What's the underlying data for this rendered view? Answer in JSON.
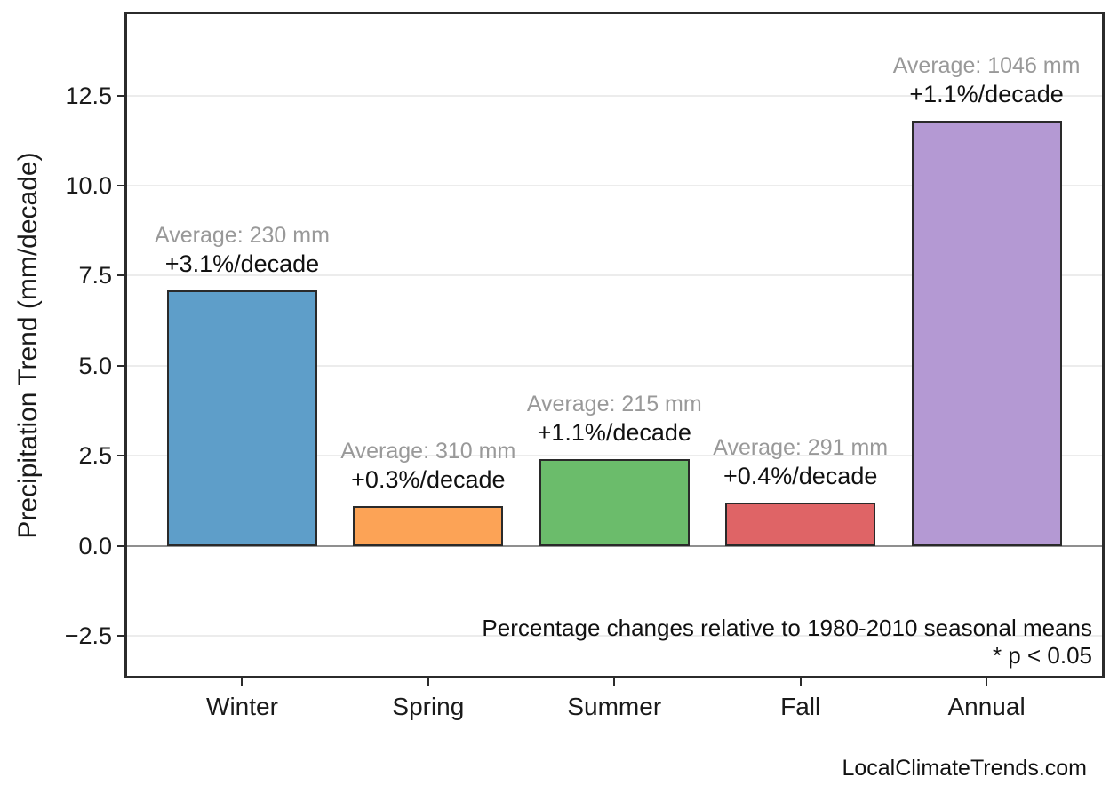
{
  "page": {
    "attribution": "LocalClimateTrends.com"
  },
  "chart_data": {
    "type": "bar",
    "title": "",
    "categories": [
      "Winter",
      "Spring",
      "Summer",
      "Fall",
      "Annual"
    ],
    "values": [
      7.1,
      1.1,
      2.4,
      1.2,
      11.8
    ],
    "units": "mm/decade",
    "averages_mm": [
      230,
      310,
      215,
      291,
      1046
    ],
    "pct_change_per_decade": [
      "+3.1%",
      "+0.3%",
      "+1.1%",
      "+0.4%",
      "+1.1%"
    ],
    "annotations": [
      {
        "avg": "Average: 230 mm",
        "pct": "+3.1%/decade"
      },
      {
        "avg": "Average: 310 mm",
        "pct": "+0.3%/decade"
      },
      {
        "avg": "Average: 215 mm",
        "pct": "+1.1%/decade"
      },
      {
        "avg": "Average: 291 mm",
        "pct": "+0.4%/decade"
      },
      {
        "avg": "Average: 1046 mm",
        "pct": "+1.1%/decade"
      }
    ],
    "xlabel": "",
    "ylabel": "Precipitation Trend (mm/decade)",
    "ylim": [
      -3.68,
      14.83
    ],
    "yticks": [
      {
        "value": 12.5,
        "label": "12.5"
      },
      {
        "value": 10.0,
        "label": "10.0"
      },
      {
        "value": 7.5,
        "label": "7.5"
      },
      {
        "value": 5.0,
        "label": "5.0"
      },
      {
        "value": 2.5,
        "label": "2.5"
      },
      {
        "value": 0.0,
        "label": "0.0"
      },
      {
        "value": -2.5,
        "label": "−2.5"
      }
    ],
    "grid": true,
    "legend": "none",
    "bar_colors": [
      "#5E9EC9",
      "#FCA356",
      "#6BBC6B",
      "#DF6466",
      "#B499D3"
    ],
    "bar_edge_color": "#2a2a2a",
    "gridline_color": "#ececec",
    "zero_line_color": "#8f8f8f",
    "annotation_avg_color": "#999999",
    "annotation_pct_color": "#111111",
    "footnote_line1": "Percentage changes relative to 1980-2010 seasonal means",
    "footnote_line2": "* p < 0.05"
  }
}
